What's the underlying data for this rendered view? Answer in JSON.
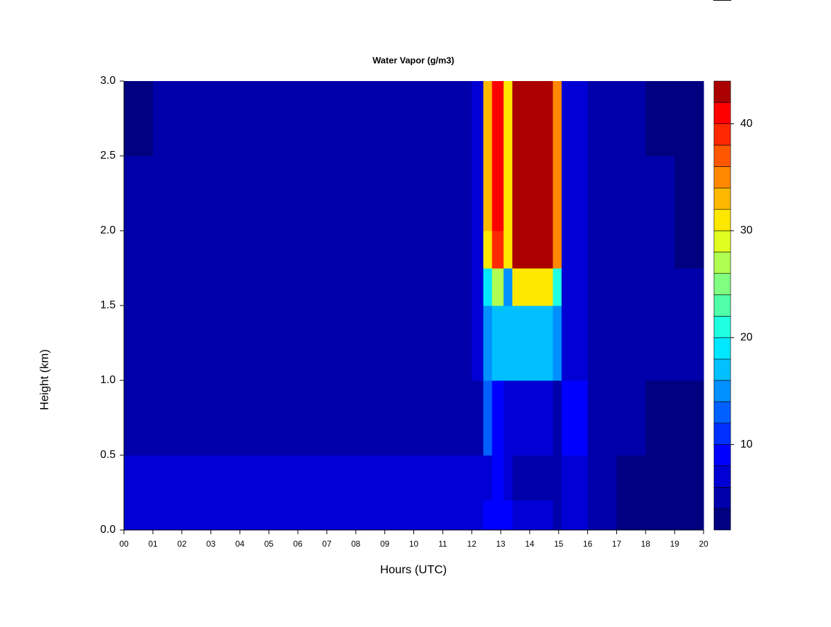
{
  "chart_data": {
    "type": "heatmap",
    "title": "Water Vapor (g/m3)",
    "x_label": "Hours (UTC)",
    "y_label": "Height (km)",
    "x_bins": [
      0,
      1,
      2,
      3,
      4,
      5,
      6,
      7,
      8,
      9,
      10,
      11,
      12,
      12.4,
      12.7,
      13.1,
      13.4,
      14.8,
      15.1,
      16,
      17,
      18,
      19,
      20
    ],
    "y_bins": [
      0,
      0.2,
      0.5,
      1.0,
      1.5,
      1.75,
      2.0,
      2.5,
      3.0
    ],
    "z": [
      [
        7,
        7,
        7,
        6,
        6,
        6,
        6,
        6,
        6,
        6,
        6,
        6,
        6,
        8,
        9,
        8,
        6,
        5,
        6,
        4,
        3,
        3,
        3
      ],
      [
        6,
        6,
        6,
        6,
        6,
        6,
        6,
        6,
        6,
        6,
        6,
        6,
        6,
        7,
        9,
        7,
        5,
        4,
        6,
        4,
        3,
        3,
        3
      ],
      [
        5,
        5,
        5,
        5,
        5,
        5,
        5,
        5,
        5,
        5,
        5,
        5,
        5,
        12,
        8,
        6,
        6,
        5,
        8,
        5,
        4,
        3,
        3
      ],
      [
        5,
        5,
        5,
        5,
        5,
        5,
        5,
        5,
        5,
        5,
        5,
        5,
        6,
        15,
        16,
        16,
        17,
        15,
        7,
        5,
        5,
        4,
        4
      ],
      [
        5,
        5,
        5,
        5,
        5,
        5,
        5,
        5,
        5,
        5,
        5,
        5,
        6,
        18,
        26,
        14,
        30,
        20,
        7,
        5,
        5,
        4,
        4
      ],
      [
        5,
        5,
        5,
        5,
        5,
        5,
        5,
        5,
        5,
        5,
        5,
        5,
        6,
        30,
        38,
        30,
        42,
        34,
        6,
        5,
        5,
        4,
        3
      ],
      [
        4,
        5,
        5,
        5,
        5,
        5,
        5,
        5,
        5,
        5,
        5,
        5,
        6,
        32,
        40,
        30,
        43,
        34,
        6,
        5,
        5,
        4,
        3
      ],
      [
        3,
        4,
        4,
        4,
        4,
        5,
        5,
        4,
        5,
        5,
        5,
        5,
        6,
        32,
        40,
        30,
        43,
        34,
        6,
        5,
        4,
        3,
        3
      ]
    ],
    "xlim": [
      0,
      20
    ],
    "xticks": [
      {
        "value": 0,
        "label": "00"
      },
      {
        "value": 1,
        "label": "01"
      },
      {
        "value": 2,
        "label": "02"
      },
      {
        "value": 3,
        "label": "03"
      },
      {
        "value": 4,
        "label": "04"
      },
      {
        "value": 5,
        "label": "05"
      },
      {
        "value": 6,
        "label": "06"
      },
      {
        "value": 7,
        "label": "07"
      },
      {
        "value": 8,
        "label": "08"
      },
      {
        "value": 9,
        "label": "09"
      },
      {
        "value": 10,
        "label": "10"
      },
      {
        "value": 11,
        "label": "11"
      },
      {
        "value": 12,
        "label": "12"
      },
      {
        "value": 13,
        "label": "13"
      },
      {
        "value": 14,
        "label": "14"
      },
      {
        "value": 15,
        "label": "15"
      },
      {
        "value": 16,
        "label": "16"
      },
      {
        "value": 17,
        "label": "17"
      },
      {
        "value": 18,
        "label": "18"
      },
      {
        "value": 19,
        "label": "19"
      },
      {
        "value": 20,
        "label": "20"
      }
    ],
    "ylim": [
      0,
      3
    ],
    "yticks": [
      {
        "value": 0,
        "label": "0.0"
      },
      {
        "value": 0.5,
        "label": "0.5"
      },
      {
        "value": 1,
        "label": "1.0"
      },
      {
        "value": 1.5,
        "label": "1.5"
      },
      {
        "value": 2,
        "label": "2.0"
      },
      {
        "value": 2.5,
        "label": "2.5"
      },
      {
        "value": 3,
        "label": "3.0"
      }
    ],
    "levels": [
      2,
      4,
      6,
      8,
      10,
      12,
      14,
      16,
      18,
      20,
      22,
      24,
      26,
      28,
      30,
      32,
      34,
      36,
      38,
      40,
      42,
      44
    ],
    "colors": [
      "#000080",
      "#0000aa",
      "#0000d4",
      "#0000ff",
      "#0030ff",
      "#0060ff",
      "#0090ff",
      "#00c0ff",
      "#00e8ff",
      "#20ffe0",
      "#50ffa8",
      "#80ff80",
      "#b0ff50",
      "#e0ff20",
      "#ffe800",
      "#ffb800",
      "#ff8800",
      "#ff5800",
      "#ff2800",
      "#ff0000",
      "#aa0000"
    ],
    "zticks": [
      10,
      20,
      30,
      40
    ]
  }
}
